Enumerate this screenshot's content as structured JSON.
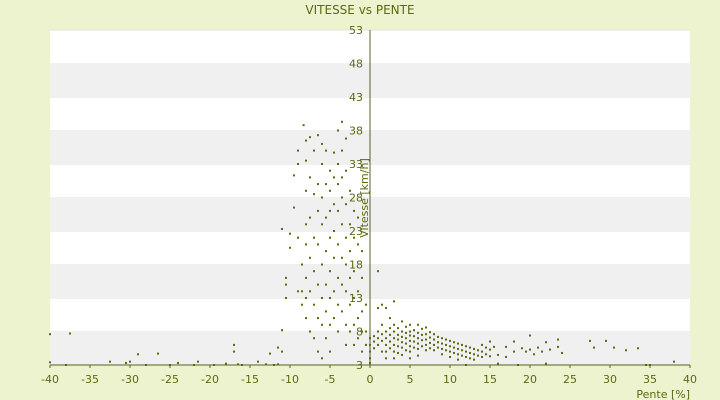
{
  "colors": {
    "page_background": "#eef3cf",
    "plot_background": "#ffffff",
    "band_alternate": "#f0f0f0",
    "axis": "#55641a",
    "point": "#5a6a10",
    "text": "#5a6a10"
  },
  "chart_data": {
    "type": "scatter",
    "title": "VITESSE vs PENTE",
    "xlabel": "Pente [%]",
    "ylabel": "Vitesse [km/h]",
    "xlim": [
      -40,
      40
    ],
    "ylim": [
      3,
      53
    ],
    "x_ticks": [
      -40,
      -35,
      -30,
      -25,
      -20,
      -15,
      -10,
      -5,
      0,
      5,
      10,
      15,
      20,
      25,
      30,
      35,
      40
    ],
    "y_ticks": [
      3,
      8,
      13,
      18,
      23,
      28,
      33,
      38,
      43,
      48,
      53
    ],
    "grid": "horizontal bands",
    "legend": "none",
    "series": [
      {
        "points": [
          [
            -40,
            3.4
          ],
          [
            -39,
            2.9
          ],
          [
            -38,
            3
          ],
          [
            -37.5,
            7.7
          ],
          [
            -40,
            7.6
          ],
          [
            -32.5,
            3.5
          ],
          [
            -30.5,
            3.3
          ],
          [
            -30,
            3.5
          ],
          [
            -30,
            2.9
          ],
          [
            -29,
            4.6
          ],
          [
            -28,
            3
          ],
          [
            -26.5,
            4.7
          ],
          [
            -25,
            3
          ],
          [
            -24,
            3.3
          ],
          [
            -23,
            2.9
          ],
          [
            -22,
            3
          ],
          [
            -21.5,
            3.5
          ],
          [
            -19.5,
            3
          ],
          [
            -18,
            3.2
          ],
          [
            -17,
            6
          ],
          [
            -17,
            5
          ],
          [
            -16,
            3
          ],
          [
            -16.5,
            3.1
          ],
          [
            -14,
            3.5
          ],
          [
            -13,
            3.1
          ],
          [
            -12.5,
            4.7
          ],
          [
            -12,
            3
          ],
          [
            -11.5,
            3.1
          ],
          [
            -11.5,
            5.6
          ],
          [
            -11,
            8.2
          ],
          [
            -11,
            5
          ],
          [
            -11,
            23.3
          ],
          [
            -10.5,
            16
          ],
          [
            -10.5,
            15
          ],
          [
            -10.5,
            13
          ],
          [
            -10,
            22.6
          ],
          [
            -10,
            20.5
          ],
          [
            -9.5,
            31.3
          ],
          [
            -9.5,
            26.5
          ],
          [
            -9,
            33
          ],
          [
            -9,
            35
          ],
          [
            -9,
            22
          ],
          [
            -9,
            14
          ],
          [
            -8.5,
            18
          ],
          [
            -8.5,
            14
          ],
          [
            -8.5,
            12
          ],
          [
            -8.3,
            38.8
          ],
          [
            -8,
            36.5
          ],
          [
            -8,
            33.5
          ],
          [
            -8,
            29
          ],
          [
            -8,
            24
          ],
          [
            -8,
            21
          ],
          [
            -8,
            16
          ],
          [
            -8,
            13
          ],
          [
            -8,
            10
          ],
          [
            -7.5,
            37
          ],
          [
            -7.5,
            31
          ],
          [
            -7.5,
            25
          ],
          [
            -7.5,
            19
          ],
          [
            -7.5,
            14
          ],
          [
            -7.5,
            8
          ],
          [
            -7,
            35
          ],
          [
            -7,
            28.5
          ],
          [
            -7,
            22
          ],
          [
            -7,
            17
          ],
          [
            -7,
            12
          ],
          [
            -7,
            7
          ],
          [
            -6.5,
            37.3
          ],
          [
            -6.5,
            30
          ],
          [
            -6.5,
            26
          ],
          [
            -6.5,
            21
          ],
          [
            -6.5,
            15
          ],
          [
            -6.5,
            10
          ],
          [
            -6.5,
            5
          ],
          [
            -6,
            36
          ],
          [
            -6,
            33
          ],
          [
            -6,
            28
          ],
          [
            -6,
            24
          ],
          [
            -6,
            18
          ],
          [
            -6,
            13
          ],
          [
            -6,
            9
          ],
          [
            -6,
            4
          ],
          [
            -5.5,
            35
          ],
          [
            -5.5,
            30
          ],
          [
            -5.5,
            25
          ],
          [
            -5.5,
            20
          ],
          [
            -5.5,
            15
          ],
          [
            -5.5,
            11
          ],
          [
            -5.5,
            7
          ],
          [
            -5,
            32
          ],
          [
            -5,
            29
          ],
          [
            -5,
            26
          ],
          [
            -5,
            22
          ],
          [
            -5,
            17
          ],
          [
            -5,
            13
          ],
          [
            -5,
            9
          ],
          [
            -5,
            5
          ],
          [
            -4.5,
            34.7
          ],
          [
            -4.5,
            31
          ],
          [
            -4.5,
            27
          ],
          [
            -4.5,
            23
          ],
          [
            -4.5,
            19
          ],
          [
            -4.5,
            14
          ],
          [
            -4.5,
            10
          ],
          [
            -4,
            38
          ],
          [
            -4,
            33
          ],
          [
            -4,
            30
          ],
          [
            -4,
            26
          ],
          [
            -4,
            21
          ],
          [
            -4,
            16
          ],
          [
            -4,
            12
          ],
          [
            -4,
            8
          ],
          [
            -3.5,
            39.3
          ],
          [
            -3.5,
            35
          ],
          [
            -3.5,
            31
          ],
          [
            -3.5,
            28
          ],
          [
            -3.5,
            24
          ],
          [
            -3.5,
            19
          ],
          [
            -3.5,
            15
          ],
          [
            -3.5,
            11
          ],
          [
            -3,
            36.8
          ],
          [
            -3,
            32
          ],
          [
            -3,
            27
          ],
          [
            -3,
            22
          ],
          [
            -3,
            18
          ],
          [
            -3,
            14
          ],
          [
            -3,
            9
          ],
          [
            -3,
            6
          ],
          [
            -2.5,
            29
          ],
          [
            -2.5,
            24
          ],
          [
            -2.5,
            20
          ],
          [
            -2.5,
            16
          ],
          [
            -2.5,
            12
          ],
          [
            -2.5,
            8
          ],
          [
            -2,
            26
          ],
          [
            -2,
            22
          ],
          [
            -2,
            17
          ],
          [
            -2,
            13
          ],
          [
            -2,
            9
          ],
          [
            -2,
            6
          ],
          [
            -1.5,
            25
          ],
          [
            -1.5,
            21
          ],
          [
            -1.5,
            14
          ],
          [
            -1.5,
            10
          ],
          [
            -1.5,
            7
          ],
          [
            -1,
            20
          ],
          [
            -1,
            16
          ],
          [
            -1,
            11
          ],
          [
            -1,
            8
          ],
          [
            -1,
            5
          ],
          [
            -0.5,
            12
          ],
          [
            -0.5,
            8
          ],
          [
            -0.5,
            6
          ],
          [
            0,
            3.3
          ],
          [
            0,
            2.8
          ],
          [
            0,
            2.5
          ],
          [
            0,
            6
          ],
          [
            0,
            5
          ],
          [
            0,
            4
          ],
          [
            0,
            7
          ],
          [
            0.5,
            7.3
          ],
          [
            0.5,
            6.5
          ],
          [
            0.5,
            5.5
          ],
          [
            1,
            17
          ],
          [
            1,
            11.5
          ],
          [
            1,
            8
          ],
          [
            1,
            7
          ],
          [
            1,
            6
          ],
          [
            1.5,
            12
          ],
          [
            1.5,
            9
          ],
          [
            1.5,
            7.6
          ],
          [
            1.5,
            6.6
          ],
          [
            1.5,
            5
          ],
          [
            2,
            11.5
          ],
          [
            2,
            8
          ],
          [
            2,
            7
          ],
          [
            2,
            6
          ],
          [
            2,
            5
          ],
          [
            2,
            4
          ],
          [
            2.5,
            10
          ],
          [
            2.5,
            8.5
          ],
          [
            2.5,
            7.5
          ],
          [
            2.5,
            6.5
          ],
          [
            2.5,
            5.5
          ],
          [
            3,
            12.5
          ],
          [
            3,
            9
          ],
          [
            3,
            8
          ],
          [
            3,
            7
          ],
          [
            3,
            6
          ],
          [
            3,
            5
          ],
          [
            3,
            4
          ],
          [
            3.5,
            8.5
          ],
          [
            3.5,
            7.5
          ],
          [
            3.5,
            6.8
          ],
          [
            3.5,
            5.8
          ],
          [
            3.5,
            4.8
          ],
          [
            4,
            9.5
          ],
          [
            4,
            8
          ],
          [
            4,
            7.2
          ],
          [
            4,
            6.4
          ],
          [
            4,
            5.6
          ],
          [
            4,
            4.5
          ],
          [
            4.5,
            8.7
          ],
          [
            4.5,
            7.8
          ],
          [
            4.5,
            7
          ],
          [
            4.5,
            6.2
          ],
          [
            4.5,
            5.2
          ],
          [
            5,
            9
          ],
          [
            5,
            8
          ],
          [
            5,
            7.4
          ],
          [
            5,
            6.6
          ],
          [
            5,
            5.8
          ],
          [
            5,
            5
          ],
          [
            5,
            4
          ],
          [
            5.5,
            8.2
          ],
          [
            5.5,
            7.3
          ],
          [
            5.5,
            6.5
          ],
          [
            5.5,
            5.6
          ],
          [
            6,
            9
          ],
          [
            6,
            7.8
          ],
          [
            6,
            7
          ],
          [
            6,
            6.2
          ],
          [
            6,
            5.4
          ],
          [
            6,
            4.4
          ],
          [
            6.5,
            8.4
          ],
          [
            6.5,
            7.5
          ],
          [
            6.5,
            6.7
          ],
          [
            6.5,
            5.8
          ],
          [
            7,
            8.6
          ],
          [
            7,
            7.6
          ],
          [
            7,
            6.8
          ],
          [
            7,
            6
          ],
          [
            7,
            5.2
          ],
          [
            7.5,
            7.9
          ],
          [
            7.5,
            7.1
          ],
          [
            7.5,
            6.3
          ],
          [
            7.5,
            5.5
          ],
          [
            8,
            7.6
          ],
          [
            8,
            6.8
          ],
          [
            8,
            6
          ],
          [
            8,
            5.2
          ],
          [
            8.5,
            7.2
          ],
          [
            8.5,
            6.4
          ],
          [
            8.5,
            5.6
          ],
          [
            9,
            7
          ],
          [
            9,
            6.2
          ],
          [
            9,
            5.4
          ],
          [
            9,
            4.6
          ],
          [
            9.5,
            6.8
          ],
          [
            9.5,
            6
          ],
          [
            9.5,
            5.2
          ],
          [
            10,
            6.6
          ],
          [
            10,
            5.8
          ],
          [
            10,
            5
          ],
          [
            10,
            4.2
          ],
          [
            10.5,
            6.4
          ],
          [
            10.5,
            5.6
          ],
          [
            10.5,
            4.8
          ],
          [
            11,
            6.2
          ],
          [
            11,
            5.4
          ],
          [
            11,
            4.6
          ],
          [
            11,
            3.8
          ],
          [
            11.5,
            6
          ],
          [
            11.5,
            5.2
          ],
          [
            11.5,
            4.4
          ],
          [
            12,
            5.8
          ],
          [
            12,
            5
          ],
          [
            12,
            4.2
          ],
          [
            12,
            3
          ],
          [
            12.5,
            5.6
          ],
          [
            12.5,
            4.8
          ],
          [
            12.5,
            4
          ],
          [
            13,
            5.4
          ],
          [
            13,
            4.6
          ],
          [
            13,
            3.8
          ],
          [
            13.5,
            5.2
          ],
          [
            13.5,
            4.4
          ],
          [
            14,
            6
          ],
          [
            14,
            5
          ],
          [
            14,
            4.2
          ],
          [
            14.5,
            5.6
          ],
          [
            14.5,
            4.6
          ],
          [
            15,
            6.5
          ],
          [
            15,
            5.3
          ],
          [
            15,
            4.3
          ],
          [
            15.5,
            5.7
          ],
          [
            16,
            4.5
          ],
          [
            16,
            3.2
          ],
          [
            17,
            5.7
          ],
          [
            17,
            4.2
          ],
          [
            18,
            6.5
          ],
          [
            18,
            5
          ],
          [
            18.5,
            3
          ],
          [
            19,
            5.5
          ],
          [
            19.5,
            5
          ],
          [
            20,
            7.4
          ],
          [
            20,
            5.3
          ],
          [
            20.5,
            4.6
          ],
          [
            21,
            5.6
          ],
          [
            21.5,
            5
          ],
          [
            22,
            6.4
          ],
          [
            22,
            3.2
          ],
          [
            22.5,
            5.3
          ],
          [
            23.5,
            6.8
          ],
          [
            23.5,
            5.7
          ],
          [
            24,
            4.8
          ],
          [
            27.5,
            6.6
          ],
          [
            28,
            5.6
          ],
          [
            29.5,
            6.6
          ],
          [
            30.5,
            5.6
          ],
          [
            32,
            5.2
          ],
          [
            33.5,
            5.5
          ],
          [
            34.5,
            3
          ],
          [
            35,
            3
          ],
          [
            38,
            3.5
          ]
        ]
      }
    ]
  }
}
